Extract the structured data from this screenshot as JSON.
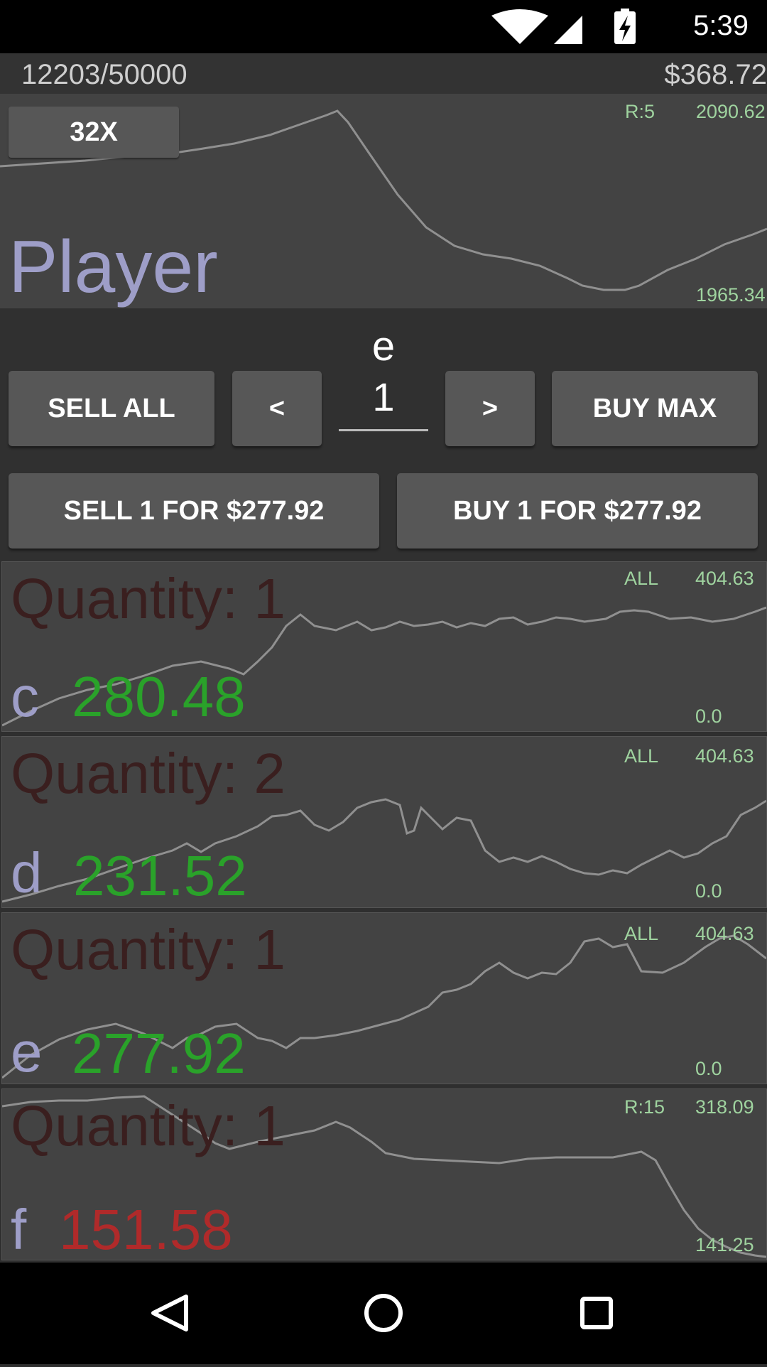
{
  "status_bar": {
    "time": "5:39"
  },
  "info_bar": {
    "progress": "12203/50000",
    "cash": "$368.72"
  },
  "player": {
    "zoom_label": "32X",
    "name": "Player",
    "range_label": "R:5",
    "max_value": "2090.62",
    "min_value": "1965.34"
  },
  "controls": {
    "selected_stock": "e",
    "sell_all_label": "SELL ALL",
    "decrement_label": "<",
    "quantity_value": "1",
    "increment_label": ">",
    "buy_max_label": "BUY MAX",
    "sell_label": "SELL 1 FOR $277.92",
    "buy_label": "BUY 1 FOR $277.92"
  },
  "stocks": [
    {
      "letter": "c",
      "quantity_label": "Quantity: 1",
      "price": "280.48",
      "price_color": "#2aa22a",
      "range_label": "ALL",
      "max_value": "404.63",
      "min_value": "0.0"
    },
    {
      "letter": "d",
      "quantity_label": "Quantity: 2",
      "price": "231.52",
      "price_color": "#2aa22a",
      "range_label": "ALL",
      "max_value": "404.63",
      "min_value": "0.0"
    },
    {
      "letter": "e",
      "quantity_label": "Quantity: 1",
      "price": "277.92",
      "price_color": "#2aa22a",
      "range_label": "ALL",
      "max_value": "404.63",
      "min_value": "0.0"
    },
    {
      "letter": "f",
      "quantity_label": "Quantity: 1",
      "price": "151.58",
      "price_color": "#b02a2a",
      "range_label": "R:15",
      "max_value": "318.09",
      "min_value": "141.25"
    }
  ],
  "nav_bar": {
    "back_icon": "back-triangle-icon",
    "home_icon": "home-circle-icon",
    "recents_icon": "recents-square-icon"
  }
}
